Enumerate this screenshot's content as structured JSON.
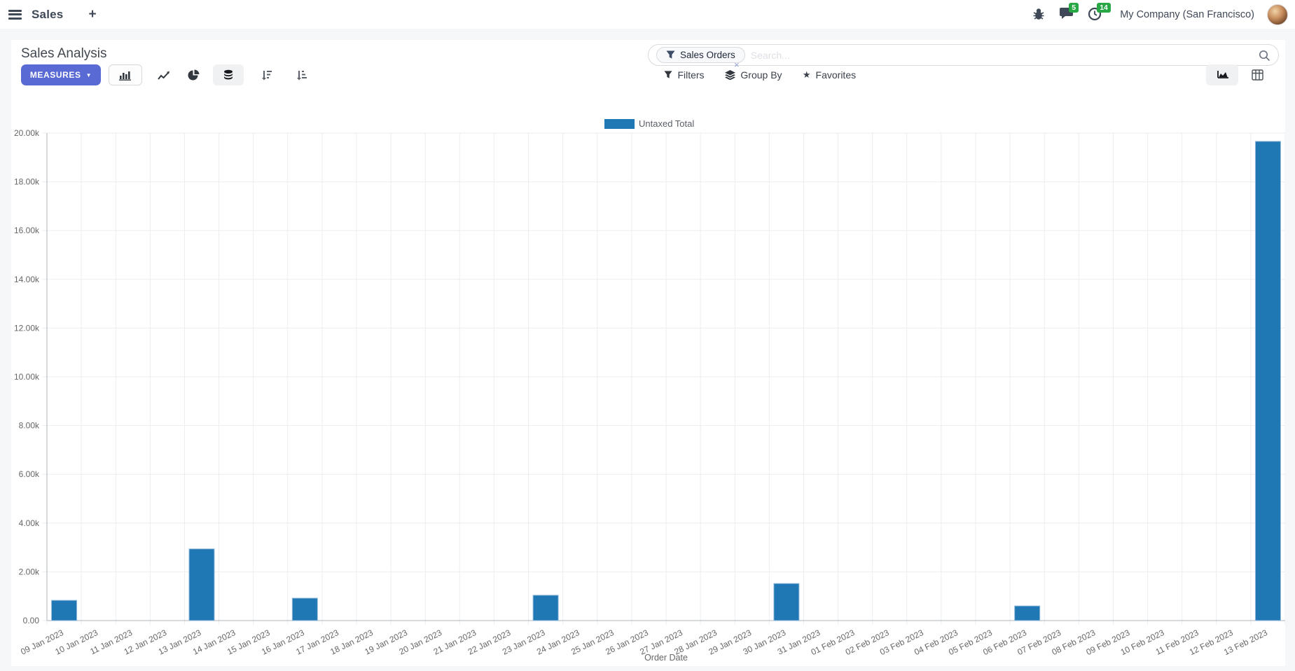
{
  "colors": {
    "primary": "#5a6ad4",
    "bar": "#1f77b4",
    "bar_border": "#93badb",
    "badge": "#28a745",
    "grid": "#ebedef",
    "axis": "#aeb4ba",
    "tick_text": "#666666"
  },
  "navbar": {
    "app": "Sales",
    "plus": "+",
    "messages_badge": "5",
    "activities_badge": "14",
    "company": "My Company (San Francisco)"
  },
  "control_panel": {
    "title": "Sales Analysis",
    "measures": "MEASURES",
    "caret": "▼",
    "filters": "Filters",
    "group_by": "Group By",
    "favorites": "Favorites",
    "star": "★",
    "search": {
      "facet": "Sales Orders",
      "placeholder": "Search...",
      "remove": "×"
    }
  },
  "chart_data": {
    "type": "bar",
    "title": "",
    "xlabel": "Order Date",
    "ylabel": "",
    "legend_position": "top",
    "grid": true,
    "ylim": [
      0,
      20000
    ],
    "y_ticks": [
      "0.00",
      "2.00k",
      "4.00k",
      "6.00k",
      "8.00k",
      "10.00k",
      "12.00k",
      "14.00k",
      "16.00k",
      "18.00k",
      "20.00k"
    ],
    "categories": [
      "09 Jan 2023",
      "10 Jan 2023",
      "11 Jan 2023",
      "12 Jan 2023",
      "13 Jan 2023",
      "14 Jan 2023",
      "15 Jan 2023",
      "16 Jan 2023",
      "17 Jan 2023",
      "18 Jan 2023",
      "19 Jan 2023",
      "20 Jan 2023",
      "21 Jan 2023",
      "22 Jan 2023",
      "23 Jan 2023",
      "24 Jan 2023",
      "25 Jan 2023",
      "26 Jan 2023",
      "27 Jan 2023",
      "28 Jan 2023",
      "29 Jan 2023",
      "30 Jan 2023",
      "31 Jan 2023",
      "01 Feb 2023",
      "02 Feb 2023",
      "03 Feb 2023",
      "04 Feb 2023",
      "05 Feb 2023",
      "06 Feb 2023",
      "07 Feb 2023",
      "08 Feb 2023",
      "09 Feb 2023",
      "10 Feb 2023",
      "11 Feb 2023",
      "12 Feb 2023",
      "13 Feb 2023"
    ],
    "series": [
      {
        "name": "Untaxed Total",
        "values": [
          830,
          0,
          0,
          0,
          2940,
          0,
          0,
          920,
          0,
          0,
          0,
          0,
          0,
          0,
          1040,
          0,
          0,
          0,
          0,
          0,
          0,
          1520,
          0,
          0,
          0,
          0,
          0,
          0,
          600,
          0,
          0,
          0,
          0,
          0,
          0,
          19660
        ]
      }
    ]
  }
}
